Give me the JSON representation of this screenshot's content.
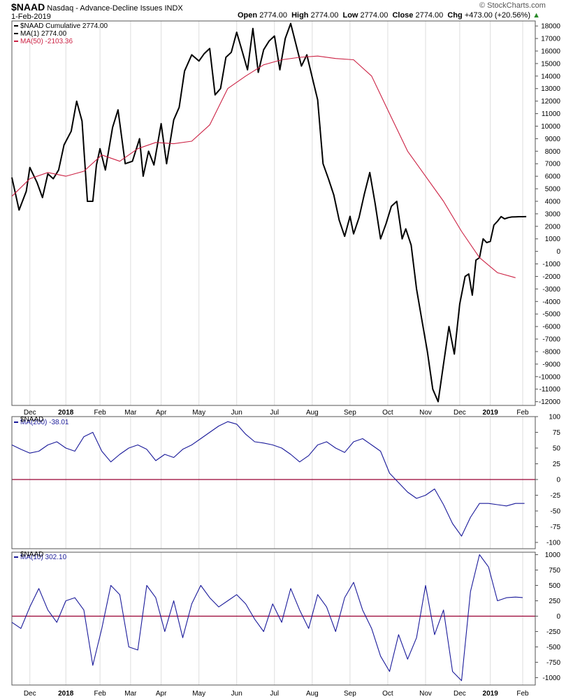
{
  "header": {
    "symbol": "$NAAD",
    "description": "Nasdaq - Advance-Decline Issues",
    "exchange": "INDX",
    "date": "1-Feb-2019",
    "open_label": "Open",
    "open": "2774.00",
    "high_label": "High",
    "high": "2774.00",
    "low_label": "Low",
    "low": "2774.00",
    "close_label": "Close",
    "close": "2774.00",
    "chg_label": "Chg",
    "chg": "+473.00 (+20.56%)",
    "watermark": "© StockCharts.com"
  },
  "colors": {
    "price": "#000000",
    "ma50": "#cc2244",
    "osc": "#1a1a9a",
    "zero_line": "#990033",
    "frame": "#555555",
    "grid": "#dddddd"
  },
  "chart_data": [
    {
      "type": "line",
      "title": "$NAAD Cumulative",
      "legend": [
        {
          "label": "$NAAD Cumulative 2774.00",
          "color": "#000000"
        },
        {
          "label": "MA(1) 2774.00",
          "color": "#000000"
        },
        {
          "label": "MA(50) -2103.36",
          "color": "#cc2244"
        }
      ],
      "ylim": [
        -12300,
        18400
      ],
      "yticks": [
        18000,
        17000,
        16000,
        15000,
        14000,
        13000,
        12000,
        11000,
        10000,
        9000,
        8000,
        7000,
        6000,
        5000,
        4000,
        3000,
        2000,
        1000,
        0,
        -1000,
        -2000,
        -3000,
        -4000,
        -5000,
        -6000,
        -7000,
        -8000,
        -9000,
        -10000,
        -11000,
        -12000
      ],
      "x_month_labels": [
        "Dec",
        "2018",
        "Feb",
        "Mar",
        "Apr",
        "May",
        "Jun",
        "Jul",
        "Aug",
        "Sep",
        "Oct",
        "Nov",
        "Dec",
        "2019",
        "Feb"
      ],
      "x_month_positions": [
        1.0,
        3.0,
        4.9,
        6.6,
        8.3,
        10.4,
        12.5,
        14.6,
        16.7,
        18.8,
        20.9,
        23.0,
        24.9,
        26.6,
        28.4
      ],
      "series": [
        {
          "name": "$NAAD Cumulative",
          "x": [
            0.0,
            0.4,
            0.8,
            1.0,
            1.4,
            1.7,
            2.0,
            2.3,
            2.6,
            2.9,
            3.3,
            3.6,
            3.9,
            4.2,
            4.5,
            4.7,
            4.9,
            5.2,
            5.6,
            5.9,
            6.3,
            6.7,
            7.1,
            7.3,
            7.6,
            7.9,
            8.3,
            8.6,
            9.0,
            9.3,
            9.6,
            10.0,
            10.4,
            10.7,
            11.0,
            11.3,
            11.6,
            11.9,
            12.2,
            12.5,
            12.8,
            13.1,
            13.4,
            13.7,
            14.0,
            14.3,
            14.6,
            14.9,
            15.2,
            15.5,
            15.8,
            16.1,
            16.4,
            16.7,
            17.0,
            17.3,
            17.6,
            17.9,
            18.2,
            18.5,
            18.8,
            19.0,
            19.3,
            19.6,
            19.9,
            20.2,
            20.5,
            20.8,
            21.1,
            21.4,
            21.7,
            21.9,
            22.2,
            22.5,
            22.8,
            23.1,
            23.4,
            23.7,
            24.0,
            24.3,
            24.6,
            24.9,
            25.2,
            25.4,
            25.6,
            25.8,
            26.0,
            26.2,
            26.4,
            26.6,
            26.8,
            27.0,
            27.2,
            27.4,
            27.6,
            27.8,
            28.0,
            28.2,
            28.4,
            28.6
          ],
          "values": [
            5900,
            3300,
            4800,
            6700,
            5500,
            4300,
            6200,
            5800,
            6500,
            8500,
            9600,
            12000,
            10400,
            4000,
            4000,
            6900,
            8200,
            6500,
            9900,
            11300,
            7000,
            7200,
            9000,
            6000,
            8000,
            6900,
            10200,
            7000,
            10500,
            11500,
            14400,
            15700,
            15200,
            15800,
            16200,
            12500,
            13000,
            15500,
            15900,
            17500,
            16000,
            14500,
            17800,
            14300,
            16100,
            16800,
            17200,
            14500,
            17000,
            18200,
            16500,
            14800,
            15700,
            13900,
            12100,
            7000,
            5800,
            4500,
            2500,
            1200,
            2800,
            1400,
            2700,
            4600,
            6300,
            3800,
            1000,
            2200,
            3600,
            4000,
            1000,
            1800,
            500,
            -3000,
            -5500,
            -8000,
            -11000,
            -12000,
            -9000,
            -6000,
            -8200,
            -4200,
            -2000,
            -1800,
            -3500,
            -700,
            -500,
            1000,
            700,
            800,
            2100,
            2400,
            2774,
            2600,
            2700,
            2750,
            2760,
            2770,
            2772,
            2774
          ]
        },
        {
          "name": "MA(50)",
          "x": [
            0,
            1,
            2,
            3,
            4,
            5,
            6,
            7,
            8,
            9,
            10,
            11,
            12,
            13,
            14,
            15,
            16,
            17,
            18,
            19,
            20,
            21,
            22,
            23,
            24,
            25,
            26,
            27,
            28
          ],
          "values": [
            4400,
            5800,
            6300,
            6000,
            6400,
            7700,
            7200,
            8200,
            8700,
            8600,
            8800,
            10100,
            13000,
            14000,
            14900,
            15300,
            15500,
            15600,
            15400,
            15300,
            14000,
            11000,
            8000,
            6000,
            4000,
            1600,
            -500,
            -1700,
            -2103
          ]
        }
      ]
    },
    {
      "type": "line",
      "title": "$NAAD",
      "legend": [
        {
          "label": "MA(200) -38.01",
          "color": "#1a1a9a"
        }
      ],
      "ylim": [
        -110,
        100
      ],
      "yticks": [
        100,
        75,
        50,
        25,
        0,
        -25,
        -50,
        -75,
        -100
      ],
      "x_month_positions": [
        1.0,
        3.0,
        4.9,
        6.6,
        8.3,
        10.4,
        12.5,
        14.6,
        16.7,
        18.8,
        20.9,
        23.0,
        24.9,
        26.6,
        28.4
      ],
      "series": [
        {
          "name": "MA(200)",
          "x": [
            0.0,
            0.5,
            1.0,
            1.5,
            2.0,
            2.5,
            3.0,
            3.5,
            4.0,
            4.5,
            5.0,
            5.5,
            6.0,
            6.5,
            7.0,
            7.5,
            8.0,
            8.5,
            9.0,
            9.5,
            10.0,
            10.5,
            11.0,
            11.5,
            12.0,
            12.5,
            13.0,
            13.5,
            14.0,
            14.5,
            15.0,
            15.5,
            16.0,
            16.5,
            17.0,
            17.5,
            18.0,
            18.5,
            19.0,
            19.5,
            20.0,
            20.5,
            21.0,
            21.5,
            22.0,
            22.5,
            23.0,
            23.5,
            24.0,
            24.5,
            25.0,
            25.5,
            26.0,
            26.5,
            27.0,
            27.5,
            28.0,
            28.5
          ],
          "values": [
            55,
            48,
            42,
            45,
            55,
            60,
            50,
            45,
            68,
            75,
            45,
            28,
            40,
            50,
            55,
            48,
            30,
            40,
            35,
            48,
            55,
            65,
            75,
            85,
            92,
            88,
            72,
            60,
            58,
            55,
            50,
            40,
            28,
            38,
            55,
            60,
            50,
            43,
            60,
            65,
            55,
            45,
            10,
            -5,
            -20,
            -30,
            -25,
            -15,
            -40,
            -70,
            -90,
            -60,
            -38,
            -38,
            -40,
            -42,
            -38,
            -38
          ]
        }
      ]
    },
    {
      "type": "line",
      "title": "$NAAD",
      "legend": [
        {
          "label": "MA(10) 302.10",
          "color": "#1a1a9a"
        }
      ],
      "ylim": [
        -1120,
        1040
      ],
      "yticks": [
        1000,
        750,
        500,
        250,
        0,
        -250,
        -500,
        -750,
        -1000
      ],
      "x_month_positions": [
        1.0,
        3.0,
        4.9,
        6.6,
        8.3,
        10.4,
        12.5,
        14.6,
        16.7,
        18.8,
        20.9,
        23.0,
        24.9,
        26.6,
        28.4
      ],
      "series": [
        {
          "name": "MA(10)",
          "x": [
            0.0,
            0.5,
            1.0,
            1.5,
            2.0,
            2.5,
            3.0,
            3.5,
            4.0,
            4.5,
            5.0,
            5.5,
            6.0,
            6.5,
            7.0,
            7.5,
            8.0,
            8.5,
            9.0,
            9.5,
            10.0,
            10.5,
            11.0,
            11.5,
            12.0,
            12.5,
            13.0,
            13.5,
            14.0,
            14.5,
            15.0,
            15.5,
            16.0,
            16.5,
            17.0,
            17.5,
            18.0,
            18.5,
            19.0,
            19.5,
            20.0,
            20.5,
            21.0,
            21.5,
            22.0,
            22.5,
            23.0,
            23.5,
            24.0,
            24.5,
            25.0,
            25.5,
            26.0,
            26.5,
            27.0,
            27.5,
            28.0,
            28.4
          ],
          "values": [
            -100,
            -200,
            150,
            450,
            100,
            -100,
            250,
            300,
            100,
            -800,
            -200,
            500,
            350,
            -500,
            -550,
            500,
            300,
            -250,
            250,
            -350,
            200,
            500,
            300,
            150,
            250,
            350,
            200,
            -50,
            -250,
            200,
            -100,
            450,
            100,
            -200,
            350,
            150,
            -250,
            300,
            550,
            100,
            -200,
            -650,
            -900,
            -300,
            -700,
            -350,
            500,
            -300,
            100,
            -900,
            -1050,
            400,
            1000,
            800,
            250,
            300,
            310,
            302
          ]
        }
      ]
    }
  ]
}
